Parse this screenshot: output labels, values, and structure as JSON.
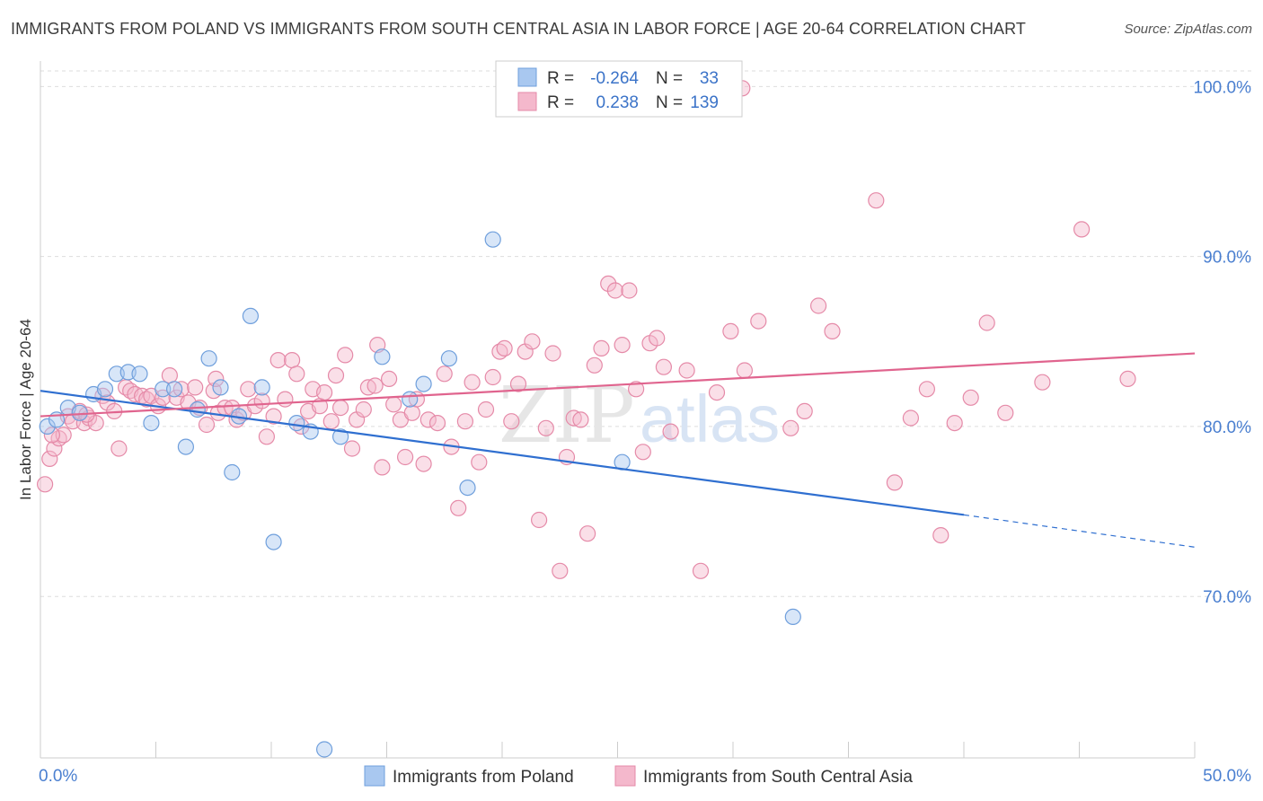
{
  "title": "IMMIGRANTS FROM POLAND VS IMMIGRANTS FROM SOUTH CENTRAL ASIA IN LABOR FORCE | AGE 20-64 CORRELATION CHART",
  "source": "Source: ZipAtlas.com",
  "watermark": {
    "zip": "ZIP",
    "atlas": "atlas"
  },
  "colors": {
    "blue_fill": "#a9c8f0",
    "blue_stroke": "#6f9fdc",
    "blue_line": "#2f6fd0",
    "pink_fill": "#f4b8cc",
    "pink_stroke": "#e58aa8",
    "pink_line": "#e0648e",
    "grid": "#dddddd",
    "axis_label": "#4a7fd0"
  },
  "stats_legend": [
    {
      "r_label": "R =",
      "r_value": "-0.264",
      "n_label": "N =",
      "n_value": "33",
      "color": "blue"
    },
    {
      "r_label": "R =",
      "r_value": "0.238",
      "n_label": "N =",
      "n_value": "139",
      "color": "pink"
    }
  ],
  "chart_data": {
    "type": "scatter",
    "title": "IMMIGRANTS FROM POLAND VS IMMIGRANTS FROM SOUTH CENTRAL ASIA IN LABOR FORCE | AGE 20-64 CORRELATION CHART",
    "xlabel": "",
    "ylabel": "In Labor Force | Age 20-64",
    "xlim": [
      0,
      50
    ],
    "ylim": [
      60.5,
      101.5
    ],
    "x_tick_labels": [
      "0.0%",
      "50.0%"
    ],
    "y_ticks": [
      70,
      80,
      90,
      100
    ],
    "y_tick_labels": [
      "70.0%",
      "80.0%",
      "90.0%",
      "100.0%"
    ],
    "grid": true,
    "legend": "bottom",
    "series": [
      {
        "name": "Immigrants from Poland",
        "color": "blue",
        "trend": {
          "x": [
            0,
            40
          ],
          "y": [
            82.1,
            74.8
          ],
          "dashed_to_x": 50,
          "dashed_to_y": 72.9
        },
        "points": [
          [
            0.3,
            80.0
          ],
          [
            0.7,
            80.4
          ],
          [
            1.2,
            81.1
          ],
          [
            1.7,
            80.8
          ],
          [
            2.3,
            81.9
          ],
          [
            2.8,
            82.2
          ],
          [
            3.3,
            83.1
          ],
          [
            3.8,
            83.2
          ],
          [
            4.3,
            83.1
          ],
          [
            4.8,
            80.2
          ],
          [
            5.3,
            82.2
          ],
          [
            5.8,
            82.2
          ],
          [
            6.3,
            78.8
          ],
          [
            6.8,
            81.0
          ],
          [
            7.3,
            84.0
          ],
          [
            7.8,
            82.3
          ],
          [
            8.3,
            77.3
          ],
          [
            8.6,
            80.6
          ],
          [
            9.1,
            86.5
          ],
          [
            9.6,
            82.3
          ],
          [
            10.1,
            73.2
          ],
          [
            11.1,
            80.2
          ],
          [
            11.7,
            79.7
          ],
          [
            12.3,
            61.0
          ],
          [
            13.0,
            79.4
          ],
          [
            14.8,
            84.1
          ],
          [
            16.0,
            81.6
          ],
          [
            16.6,
            82.5
          ],
          [
            17.7,
            84.0
          ],
          [
            18.5,
            76.4
          ],
          [
            19.6,
            91.0
          ],
          [
            25.2,
            77.9
          ],
          [
            32.6,
            68.8
          ]
        ]
      },
      {
        "name": "Immigrants from South Central Asia",
        "color": "pink",
        "trend": {
          "x": [
            0,
            50
          ],
          "y": [
            80.6,
            84.3
          ]
        },
        "points": [
          [
            0.2,
            76.6
          ],
          [
            0.4,
            78.1
          ],
          [
            0.6,
            78.7
          ],
          [
            0.8,
            79.3
          ],
          [
            1.0,
            79.5
          ],
          [
            1.2,
            80.6
          ],
          [
            1.4,
            80.3
          ],
          [
            1.7,
            80.9
          ],
          [
            1.9,
            80.2
          ],
          [
            2.1,
            80.5
          ],
          [
            2.4,
            80.2
          ],
          [
            2.7,
            81.8
          ],
          [
            2.9,
            81.4
          ],
          [
            3.2,
            80.9
          ],
          [
            3.4,
            78.7
          ],
          [
            3.7,
            82.3
          ],
          [
            3.9,
            82.1
          ],
          [
            4.1,
            81.9
          ],
          [
            4.4,
            81.8
          ],
          [
            4.6,
            81.6
          ],
          [
            4.8,
            81.8
          ],
          [
            5.1,
            81.2
          ],
          [
            5.3,
            81.7
          ],
          [
            5.6,
            83.0
          ],
          [
            5.9,
            81.7
          ],
          [
            6.1,
            82.2
          ],
          [
            6.4,
            81.4
          ],
          [
            6.7,
            82.3
          ],
          [
            6.9,
            81.1
          ],
          [
            7.2,
            80.1
          ],
          [
            7.5,
            82.1
          ],
          [
            7.7,
            80.8
          ],
          [
            8.0,
            81.1
          ],
          [
            8.3,
            81.1
          ],
          [
            8.5,
            80.4
          ],
          [
            8.8,
            80.8
          ],
          [
            9.0,
            82.2
          ],
          [
            9.3,
            81.2
          ],
          [
            9.6,
            81.5
          ],
          [
            9.8,
            79.4
          ],
          [
            10.1,
            80.6
          ],
          [
            10.3,
            83.9
          ],
          [
            10.6,
            81.6
          ],
          [
            10.9,
            83.9
          ],
          [
            11.1,
            83.1
          ],
          [
            11.3,
            80.0
          ],
          [
            11.6,
            80.9
          ],
          [
            11.8,
            82.2
          ],
          [
            12.1,
            81.2
          ],
          [
            12.3,
            82.0
          ],
          [
            12.6,
            80.3
          ],
          [
            12.8,
            83.0
          ],
          [
            13.0,
            81.1
          ],
          [
            13.2,
            84.2
          ],
          [
            13.5,
            78.7
          ],
          [
            13.7,
            80.4
          ],
          [
            14.0,
            81.0
          ],
          [
            14.2,
            82.3
          ],
          [
            14.5,
            82.4
          ],
          [
            14.6,
            84.8
          ],
          [
            14.8,
            77.6
          ],
          [
            15.1,
            82.8
          ],
          [
            15.3,
            81.3
          ],
          [
            15.6,
            80.4
          ],
          [
            15.8,
            78.2
          ],
          [
            16.1,
            80.8
          ],
          [
            16.3,
            81.6
          ],
          [
            16.6,
            77.8
          ],
          [
            16.8,
            80.4
          ],
          [
            17.2,
            80.2
          ],
          [
            17.5,
            83.1
          ],
          [
            17.8,
            78.8
          ],
          [
            18.1,
            75.2
          ],
          [
            18.4,
            80.3
          ],
          [
            18.7,
            82.6
          ],
          [
            19.0,
            77.9
          ],
          [
            19.3,
            81.0
          ],
          [
            19.6,
            82.9
          ],
          [
            19.9,
            84.4
          ],
          [
            20.1,
            84.6
          ],
          [
            20.4,
            80.3
          ],
          [
            20.7,
            82.5
          ],
          [
            21.0,
            84.4
          ],
          [
            21.3,
            85.0
          ],
          [
            21.6,
            74.5
          ],
          [
            21.9,
            79.9
          ],
          [
            22.2,
            84.3
          ],
          [
            22.5,
            71.5
          ],
          [
            22.8,
            78.2
          ],
          [
            23.1,
            80.5
          ],
          [
            23.4,
            80.4
          ],
          [
            23.7,
            73.7
          ],
          [
            24.0,
            83.6
          ],
          [
            24.3,
            84.6
          ],
          [
            24.6,
            88.4
          ],
          [
            24.9,
            88.0
          ],
          [
            25.2,
            84.8
          ],
          [
            25.5,
            88.0
          ],
          [
            25.8,
            82.2
          ],
          [
            26.1,
            78.5
          ],
          [
            26.4,
            84.9
          ],
          [
            26.7,
            85.2
          ],
          [
            27.0,
            83.5
          ],
          [
            27.3,
            79.7
          ],
          [
            28.0,
            83.3
          ],
          [
            28.6,
            71.5
          ],
          [
            29.3,
            82.0
          ],
          [
            29.9,
            85.6
          ],
          [
            30.5,
            83.3
          ],
          [
            31.1,
            86.2
          ],
          [
            32.5,
            79.9
          ],
          [
            33.1,
            80.9
          ],
          [
            33.7,
            87.1
          ],
          [
            34.3,
            85.6
          ],
          [
            36.2,
            93.3
          ],
          [
            37.0,
            76.7
          ],
          [
            37.7,
            80.5
          ],
          [
            38.4,
            82.2
          ],
          [
            39.0,
            73.6
          ],
          [
            39.6,
            80.2
          ],
          [
            40.3,
            81.7
          ],
          [
            41.0,
            86.1
          ],
          [
            41.8,
            80.8
          ],
          [
            43.4,
            82.6
          ],
          [
            45.1,
            91.6
          ],
          [
            47.1,
            82.8
          ],
          [
            30.4,
            99.9
          ],
          [
            0.5,
            79.5
          ],
          [
            2.0,
            80.7
          ],
          [
            7.6,
            82.8
          ]
        ]
      }
    ]
  },
  "bottom_legend": [
    {
      "label": "Immigrants from Poland",
      "color": "blue"
    },
    {
      "label": "Immigrants from South Central Asia",
      "color": "pink"
    }
  ]
}
